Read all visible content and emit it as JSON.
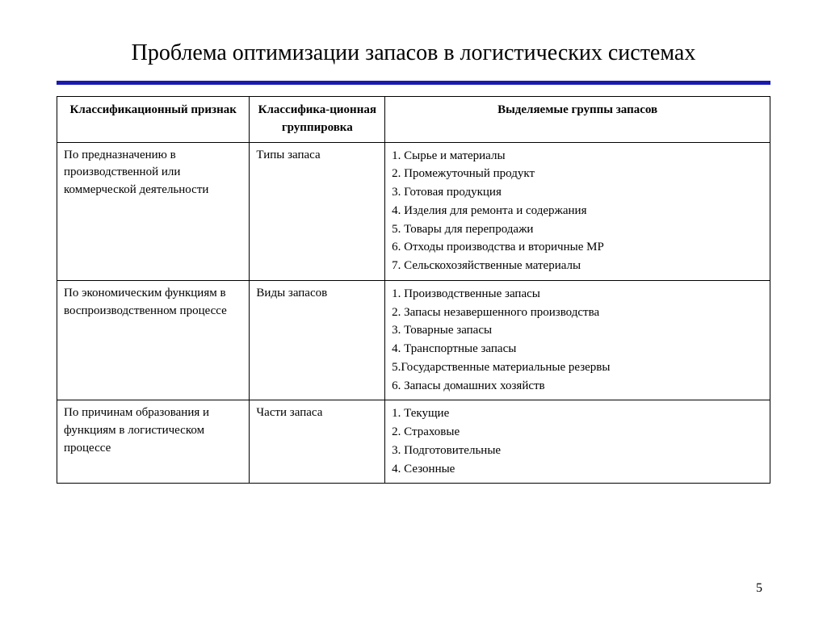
{
  "title": "Проблема оптимизации запасов в логистических системах",
  "colors": {
    "rule": "#1a1ab3",
    "border": "#000000",
    "text": "#000000",
    "background": "#ffffff"
  },
  "headers": {
    "col1": "Классификационный признак",
    "col2": "Классифика-ционная группировка",
    "col3": "Выделяемые группы запасов"
  },
  "rows": [
    {
      "feature": "По предназначению в производственной или коммерческой деятельности",
      "grouping": "Типы запаса",
      "groups": [
        "1. Сырье и материалы",
        "2. Промежуточный продукт",
        "3. Готовая продукция",
        "4. Изделия для ремонта и содержания",
        "5. Товары для перепродажи",
        "6. Отходы производства и вторичные   МР",
        "7. Сельскохозяйственные материалы"
      ]
    },
    {
      "feature": "По экономическим функциям в воспроизводственном процессе",
      "grouping": "Виды запасов",
      "groups": [
        "1. Производственные запасы",
        "2. Запасы незавершенного производства",
        "3. Товарные запасы",
        "4. Транспортные запасы",
        "5.Государственные материальные резервы",
        " 6. Запасы домашних хозяйств"
      ]
    },
    {
      "feature": "По причинам образования и функциям в логистическом процессе",
      "grouping": "Части запаса",
      "groups": [
        "1.  Текущие",
        "2. Страховые",
        "3. Подготовительные",
        "4. Сезонные"
      ]
    }
  ],
  "page_number": "5"
}
